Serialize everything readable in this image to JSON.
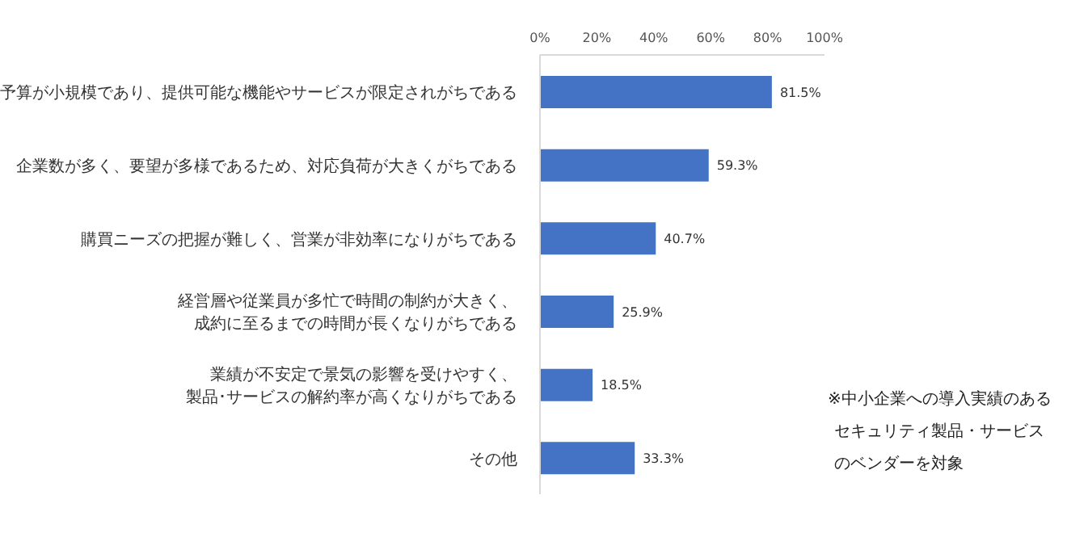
{
  "chart_data": {
    "type": "bar",
    "orientation": "horizontal",
    "categories": [
      "予算が小規模であり、提供可能な機能やサービスが限定されがちである",
      "企業数が多く、要望が多様であるため、対応負荷が大きくがちである",
      "購買ニーズの把握が難しく、営業が非効率になりがちである",
      "経営層や従業員が多忙で時間の制約が大きく、成約に至るまでの時間が長くなりがちである",
      "業績が不安定で景気の影響を受けやすく、製品･サービスの解約率が高くなりがちである",
      "その他"
    ],
    "values": [
      81.5,
      59.3,
      40.7,
      25.9,
      18.5,
      33.3
    ],
    "value_labels": [
      "81.5%",
      "59.3%",
      "40.7%",
      "25.9%",
      "18.5%",
      "33.3%"
    ],
    "color": "#4472c4",
    "xlim": [
      0,
      100
    ],
    "xticks": [
      {
        "value": 0,
        "label": "0%"
      },
      {
        "value": 20,
        "label": "20%"
      },
      {
        "value": 40,
        "label": "40%"
      },
      {
        "value": 60,
        "label": "60%"
      },
      {
        "value": 80,
        "label": "80%"
      },
      {
        "value": 100,
        "label": "100%"
      }
    ],
    "grid": false,
    "annotations": [
      "※中小企業への導入実績のあるセキュリティ製品・サービスのベンダーを対象"
    ]
  }
}
